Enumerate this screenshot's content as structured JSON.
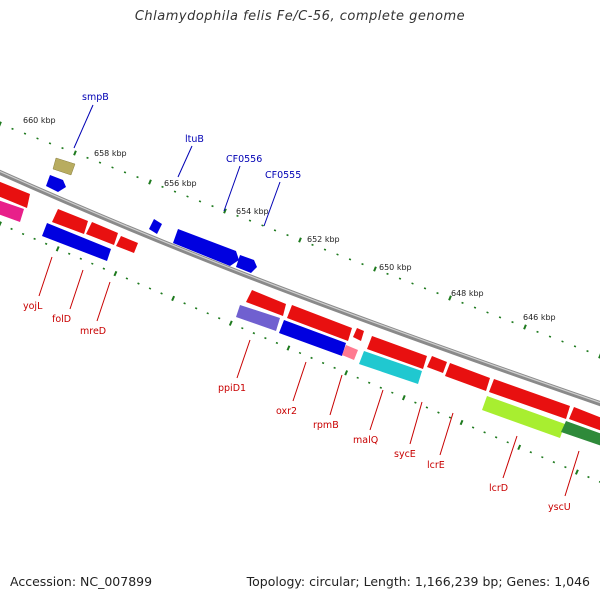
{
  "title": "Chlamydophila felis Fe/C-56, complete genome",
  "footer": {
    "accession": "Accession: NC_007899",
    "summary": "Topology: circular; Length: 1,166,239 bp; Genes: 1,046"
  },
  "colors": {
    "backbone": "#7a7a7a",
    "tick": "#1e7a1e",
    "label_forward": "#0000b4",
    "label_reverse": "#c80000"
  },
  "scale_ticks": [
    {
      "label": "660 kbp"
    },
    {
      "label": "658 kbp"
    },
    {
      "label": "656 kbp"
    },
    {
      "label": "654 kbp"
    },
    {
      "label": "652 kbp"
    },
    {
      "label": "650 kbp"
    },
    {
      "label": "648 kbp"
    },
    {
      "label": "646 kbp"
    }
  ],
  "features": [
    {
      "name": "smpB",
      "strand": "forward",
      "color": "#0000e0",
      "icon": "gene-arrow"
    },
    {
      "name": "ltuB",
      "strand": "forward",
      "color": "#0000e0",
      "icon": "gene-arrow"
    },
    {
      "name": "CF0556",
      "strand": "forward",
      "color": "#0000e0",
      "icon": "gene-arrow"
    },
    {
      "name": "CF0555",
      "strand": "forward",
      "color": "#0000e0",
      "icon": "gene-arrow"
    },
    {
      "name": "yojL",
      "strand": "reverse",
      "color": "#e81010",
      "icon": "gene-arrow"
    },
    {
      "name": "folD",
      "strand": "reverse",
      "color": "#0000e0",
      "icon": "gene-arrow"
    },
    {
      "name": "mreD",
      "strand": "reverse",
      "color": "#e81010",
      "icon": "gene-arrow"
    },
    {
      "name": "ppiD1",
      "strand": "reverse",
      "color": "#7060d0",
      "icon": "gene-arrow"
    },
    {
      "name": "oxr2",
      "strand": "reverse",
      "color": "#0000e0",
      "icon": "gene-arrow"
    },
    {
      "name": "rpmB",
      "strand": "reverse",
      "color": "#ff7a90",
      "icon": "gene-arrow"
    },
    {
      "name": "malQ",
      "strand": "reverse",
      "color": "#20c8d0",
      "icon": "gene-arrow"
    },
    {
      "name": "sycE",
      "strand": "reverse",
      "color": "#e81010",
      "icon": "gene-arrow"
    },
    {
      "name": "lcrE",
      "strand": "reverse",
      "color": "#e81010",
      "icon": "gene-arrow"
    },
    {
      "name": "lcrD",
      "strand": "reverse",
      "color": "#a8ee30",
      "icon": "gene-arrow"
    },
    {
      "name": "yscU",
      "strand": "reverse",
      "color": "#2e8a3a",
      "icon": "gene-arrow"
    }
  ]
}
